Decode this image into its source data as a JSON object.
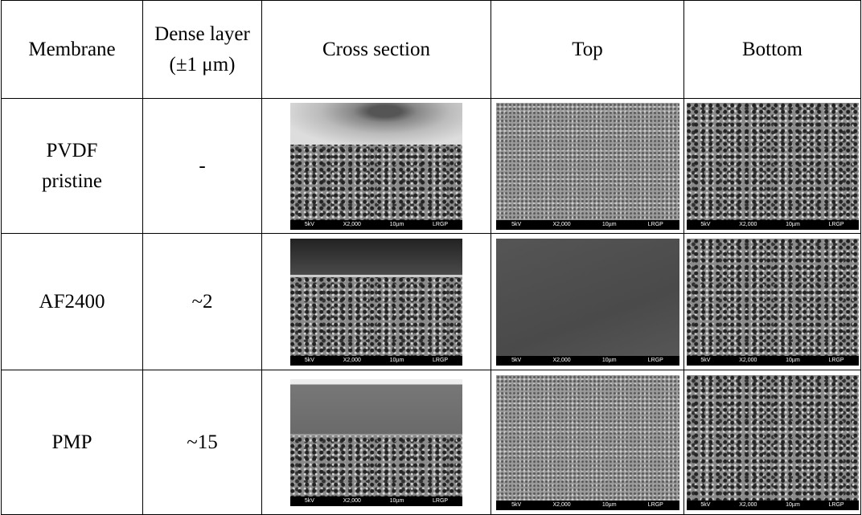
{
  "table": {
    "header": [
      "Membrane",
      "Dense layer\n(±1 μm)",
      "Cross section",
      "Top",
      "Bottom"
    ],
    "rows": [
      [
        "PVDF\npristine",
        "-"
      ],
      [
        "AF2400",
        "~2"
      ],
      [
        "PMP",
        "~15"
      ]
    ],
    "sem_scale": {
      "voltage": "5kV",
      "magnification": "X2,000",
      "scale": "10µm",
      "lab": "LRGP"
    }
  }
}
